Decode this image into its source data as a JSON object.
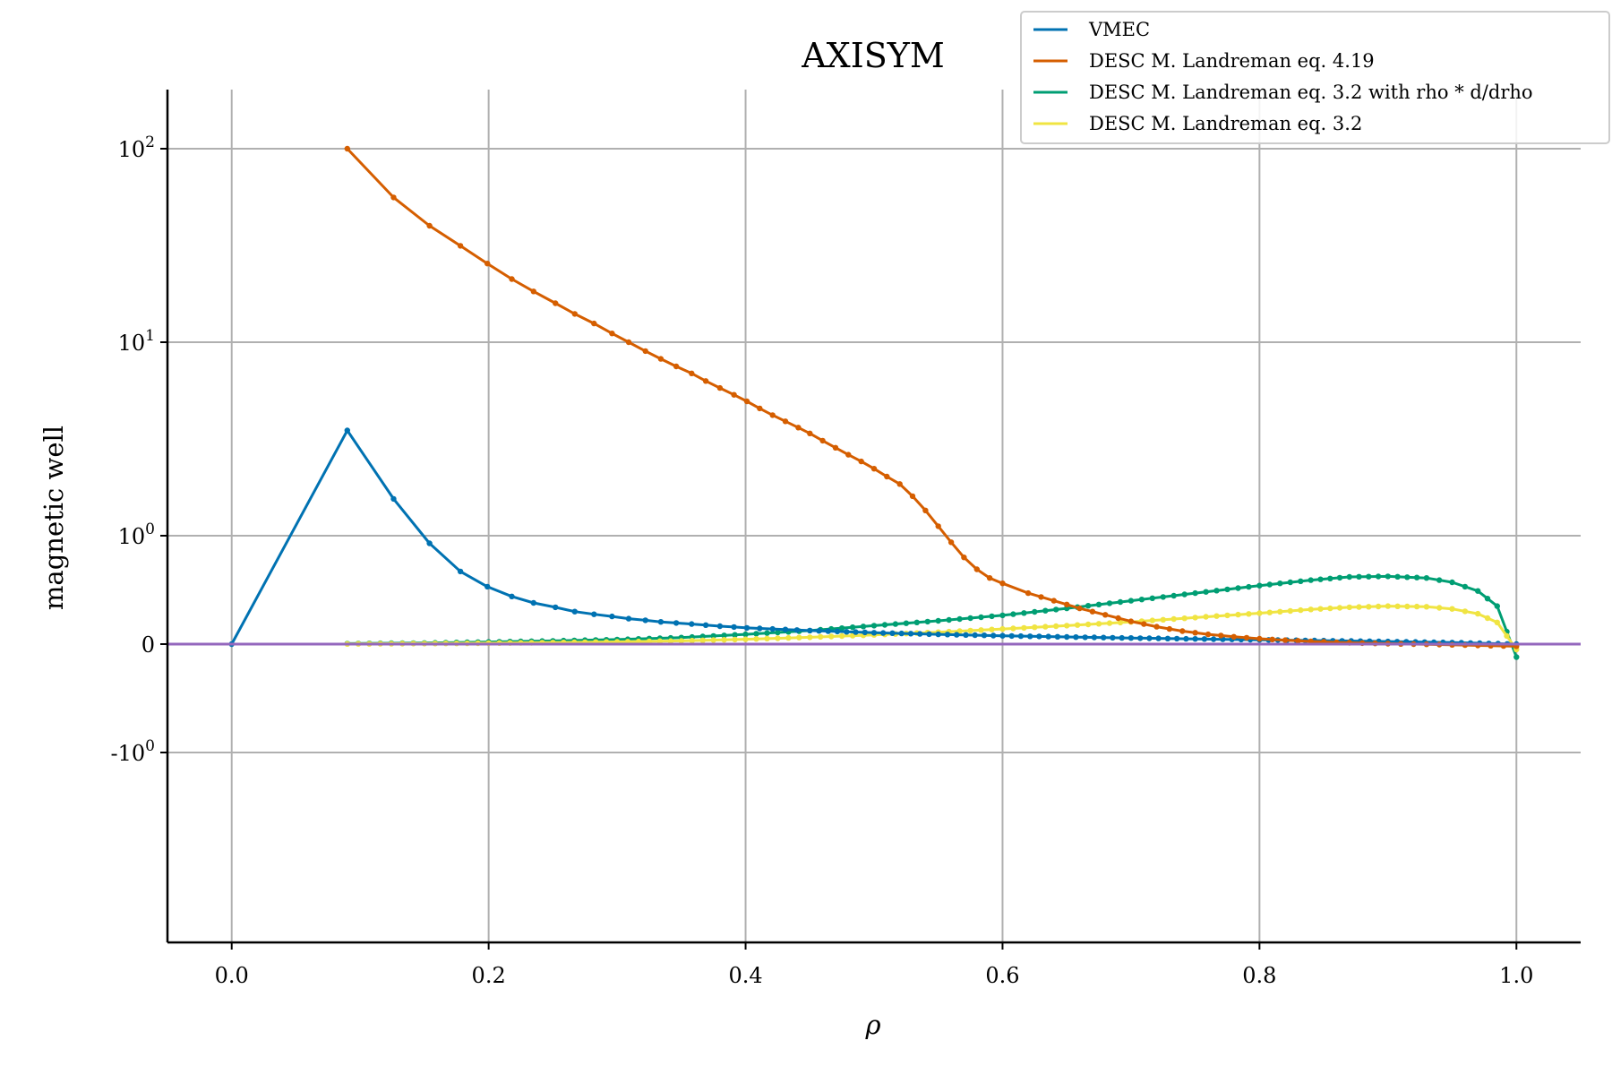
{
  "chart_data": {
    "type": "line",
    "title": "AXISYM",
    "xlabel": "ρ",
    "ylabel": "magnetic well",
    "xlim": [
      -0.05,
      1.05
    ],
    "yscale": "symlog",
    "grid": true,
    "legend_position": "top-right",
    "x_ticks": [
      {
        "value": 0.0,
        "label": "0.0"
      },
      {
        "value": 0.2,
        "label": "0.2"
      },
      {
        "value": 0.4,
        "label": "0.4"
      },
      {
        "value": 0.6,
        "label": "0.6"
      },
      {
        "value": 0.8,
        "label": "0.8"
      },
      {
        "value": 1.0,
        "label": "1.0"
      }
    ],
    "y_ticks": [
      {
        "value": 100,
        "base": "10",
        "exp": "2"
      },
      {
        "value": 10,
        "base": "10",
        "exp": "1"
      },
      {
        "value": 1,
        "base": "10",
        "exp": "0"
      },
      {
        "value": 0,
        "base": "0",
        "exp": ""
      },
      {
        "value": -1,
        "base": "-10",
        "exp": "0"
      }
    ],
    "series": [
      {
        "name": "VMEC",
        "color": "#0072B2",
        "x": [
          0.0,
          0.09,
          0.126,
          0.154,
          0.178,
          0.199,
          0.218,
          0.235,
          0.252,
          0.267,
          0.282,
          0.296,
          0.309,
          0.322,
          0.334,
          0.346,
          0.358,
          0.369,
          0.38,
          0.391,
          0.401,
          0.411,
          0.421,
          0.431,
          0.44,
          0.45,
          0.5,
          0.55,
          0.6,
          0.65,
          0.7,
          0.75,
          0.8,
          0.85,
          0.9,
          0.95,
          1.0
        ],
        "y": [
          0.0,
          3.5,
          1.55,
          0.93,
          0.67,
          0.53,
          0.44,
          0.38,
          0.34,
          0.3,
          0.275,
          0.255,
          0.235,
          0.22,
          0.205,
          0.195,
          0.185,
          0.175,
          0.165,
          0.158,
          0.15,
          0.145,
          0.14,
          0.135,
          0.13,
          0.125,
          0.105,
          0.09,
          0.077,
          0.066,
          0.056,
          0.048,
          0.04,
          0.032,
          0.024,
          0.014,
          0.0
        ]
      },
      {
        "name": "DESC M. Landreman eq. 4.19",
        "color": "#D55E00",
        "x": [
          0.09,
          0.126,
          0.154,
          0.178,
          0.199,
          0.218,
          0.235,
          0.252,
          0.267,
          0.282,
          0.296,
          0.309,
          0.322,
          0.334,
          0.346,
          0.358,
          0.369,
          0.38,
          0.391,
          0.401,
          0.411,
          0.421,
          0.431,
          0.441,
          0.45,
          0.46,
          0.47,
          0.48,
          0.49,
          0.5,
          0.51,
          0.52,
          0.53,
          0.54,
          0.55,
          0.56,
          0.57,
          0.58,
          0.59,
          0.6,
          0.62,
          0.64,
          0.66,
          0.68,
          0.7,
          0.72,
          0.74,
          0.76,
          0.78,
          0.8,
          0.82,
          0.84,
          0.86,
          0.88,
          0.9,
          0.92,
          0.94,
          0.96,
          0.98,
          1.0
        ],
        "y": [
          100,
          56,
          40,
          31.5,
          25.5,
          21.2,
          18.3,
          15.9,
          14.0,
          12.5,
          11.1,
          10.0,
          9.0,
          8.2,
          7.5,
          6.9,
          6.3,
          5.8,
          5.35,
          4.95,
          4.55,
          4.2,
          3.9,
          3.62,
          3.38,
          3.1,
          2.85,
          2.62,
          2.42,
          2.22,
          2.02,
          1.85,
          1.6,
          1.35,
          1.12,
          0.94,
          0.8,
          0.69,
          0.61,
          0.56,
          0.47,
          0.4,
          0.33,
          0.27,
          0.21,
          0.16,
          0.12,
          0.09,
          0.068,
          0.05,
          0.036,
          0.025,
          0.016,
          0.009,
          0.004,
          0.0,
          -0.004,
          -0.009,
          -0.015,
          -0.02
        ]
      },
      {
        "name": "DESC M. Landreman eq. 3.2 with rho * d/drho",
        "color": "#009E73",
        "x": [
          0.09,
          0.15,
          0.2,
          0.25,
          0.3,
          0.35,
          0.4,
          0.45,
          0.5,
          0.55,
          0.6,
          0.65,
          0.7,
          0.75,
          0.8,
          0.84,
          0.87,
          0.9,
          0.93,
          0.95,
          0.97,
          0.985,
          1.0
        ],
        "y": [
          0.005,
          0.01,
          0.02,
          0.03,
          0.042,
          0.06,
          0.09,
          0.125,
          0.17,
          0.215,
          0.265,
          0.33,
          0.4,
          0.47,
          0.54,
          0.59,
          0.62,
          0.625,
          0.61,
          0.57,
          0.49,
          0.35,
          -0.12
        ]
      },
      {
        "name": "DESC M. Landreman eq. 3.2",
        "color": "#F0E442",
        "x": [
          0.09,
          0.15,
          0.2,
          0.25,
          0.3,
          0.35,
          0.4,
          0.45,
          0.5,
          0.55,
          0.6,
          0.65,
          0.7,
          0.75,
          0.8,
          0.84,
          0.87,
          0.9,
          0.93,
          0.95,
          0.97,
          0.985,
          1.0
        ],
        "y": [
          0.002,
          0.005,
          0.009,
          0.014,
          0.021,
          0.03,
          0.045,
          0.063,
          0.085,
          0.11,
          0.14,
          0.17,
          0.205,
          0.245,
          0.285,
          0.32,
          0.34,
          0.35,
          0.345,
          0.325,
          0.28,
          0.2,
          -0.05
        ]
      },
      {
        "color": "#9467BD",
        "x": [
          -0.05,
          1.05
        ],
        "y": [
          0,
          0
        ]
      }
    ]
  }
}
